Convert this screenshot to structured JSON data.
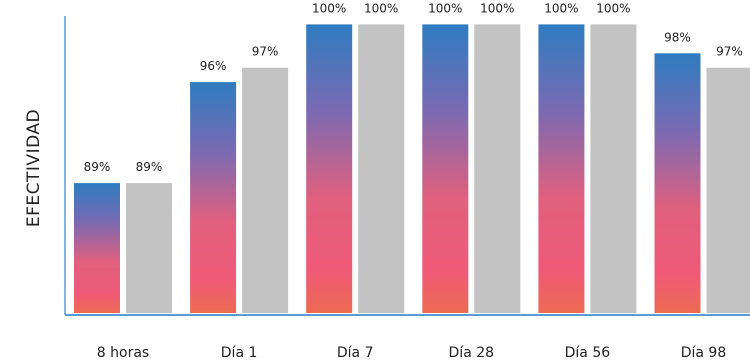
{
  "chart_data": {
    "type": "bar",
    "title": "",
    "xlabel": "",
    "ylabel": "EFECTIVIDAD",
    "categories": [
      "8 horas",
      "Día 1",
      "Día 7",
      "Día 28",
      "Día 56",
      "Día 98"
    ],
    "series": [
      {
        "values": [
          89,
          96,
          100,
          100,
          100,
          98
        ],
        "labels": [
          "89%",
          "96%",
          "100%",
          "100%",
          "100%",
          "98%"
        ]
      },
      {
        "values": [
          89,
          97,
          100,
          100,
          100,
          97
        ],
        "labels": [
          "89%",
          "97%",
          "100%",
          "100%",
          "100%",
          "97%"
        ]
      }
    ],
    "ylim": [
      80,
      101
    ],
    "grid": false,
    "legend": "none",
    "colors": {
      "series1_gradient": [
        "#2f7cc0",
        "#7a6ab3",
        "#e0607e",
        "#ef5a78",
        "#ee6a52"
      ],
      "series2": "#c3c3c3",
      "axis": "#5b9bd5"
    }
  }
}
